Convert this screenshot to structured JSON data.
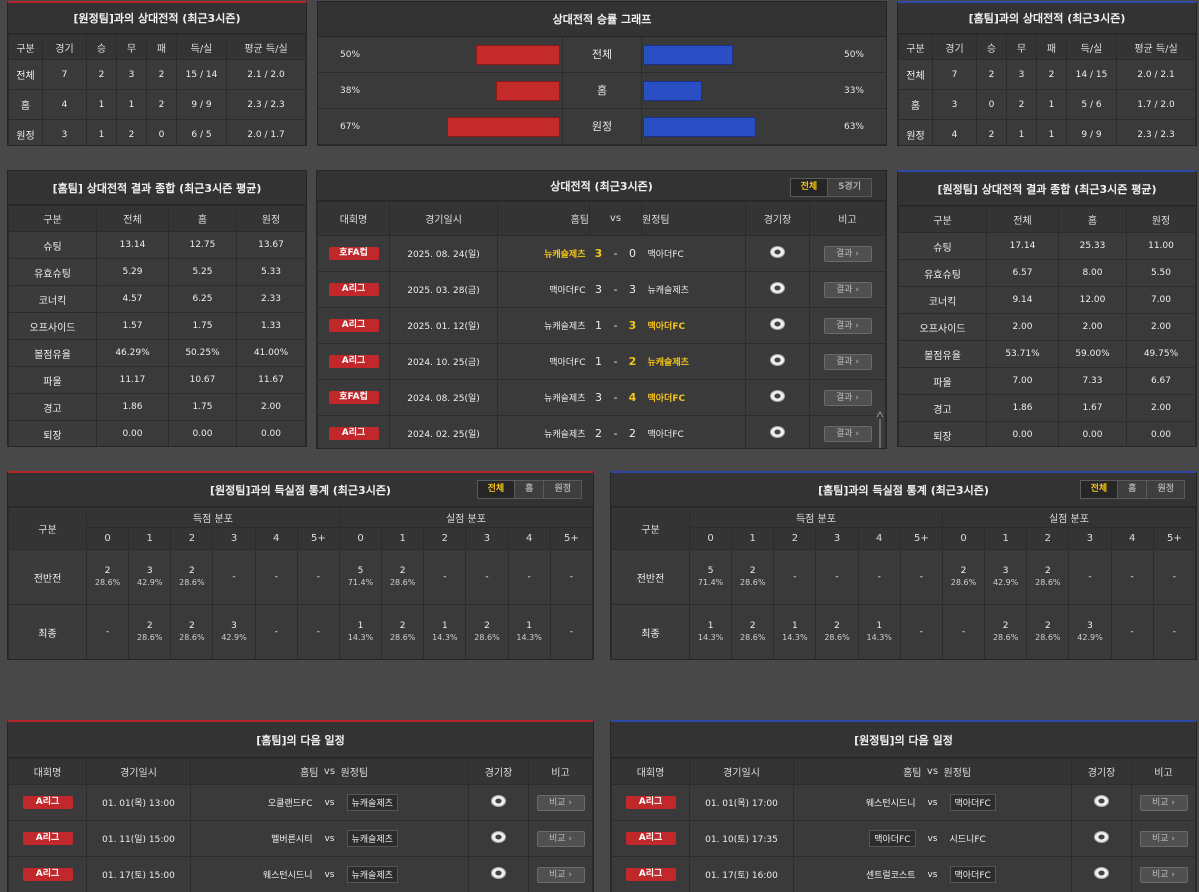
{
  "away_h2h": {
    "title": "[원정팀]과의 상대전적 (최근3시즌)",
    "headers": [
      "구분",
      "경기",
      "승",
      "무",
      "패",
      "득/실",
      "평균 득/실"
    ],
    "rows": [
      [
        "전체",
        "7",
        "2",
        "3",
        "2",
        "15 / 14",
        "2.1 / 2.0"
      ],
      [
        "홈",
        "4",
        "1",
        "1",
        "2",
        "9 / 9",
        "2.3 / 2.3"
      ],
      [
        "원정",
        "3",
        "1",
        "2",
        "0",
        "6 / 5",
        "2.0 / 1.7"
      ]
    ]
  },
  "graph": {
    "title": "상대전적 승률 그래프",
    "rows": [
      {
        "label": "전체",
        "left": "50%",
        "right": "50%",
        "lv": 50,
        "rv": 50
      },
      {
        "label": "홈",
        "left": "38%",
        "right": "33%",
        "lv": 38,
        "rv": 33
      },
      {
        "label": "원정",
        "left": "67%",
        "right": "63%",
        "lv": 67,
        "rv": 63
      }
    ],
    "colors": {
      "home": "#c42a2a",
      "away": "#2a4ec4"
    }
  },
  "home_h2h": {
    "title": "[홈팀]과의 상대전적 (최근3시즌)",
    "headers": [
      "구분",
      "경기",
      "승",
      "무",
      "패",
      "득/실",
      "평균 득/실"
    ],
    "rows": [
      [
        "전체",
        "7",
        "2",
        "3",
        "2",
        "14 / 15",
        "2.0 / 2.1"
      ],
      [
        "홈",
        "3",
        "0",
        "2",
        "1",
        "5 / 6",
        "1.7 / 2.0"
      ],
      [
        "원정",
        "4",
        "2",
        "1",
        "1",
        "9 / 9",
        "2.3 / 2.3"
      ]
    ]
  },
  "home_summary": {
    "title": "[홈팀] 상대전적 결과 종합 (최근3시즌 평균)",
    "headers": [
      "구분",
      "전체",
      "홈",
      "원정"
    ],
    "rows": [
      [
        "슈팅",
        "13.14",
        "12.75",
        "13.67"
      ],
      [
        "유효슈팅",
        "5.29",
        "5.25",
        "5.33"
      ],
      [
        "코너킥",
        "4.57",
        "6.25",
        "2.33"
      ],
      [
        "오프사이드",
        "1.57",
        "1.75",
        "1.33"
      ],
      [
        "볼점유율",
        "46.29%",
        "50.25%",
        "41.00%"
      ],
      [
        "파울",
        "11.17",
        "10.67",
        "11.67"
      ],
      [
        "경고",
        "1.86",
        "1.75",
        "2.00"
      ],
      [
        "퇴장",
        "0.00",
        "0.00",
        "0.00"
      ]
    ]
  },
  "away_summary": {
    "title": "[원정팀] 상대전적 결과 종합 (최근3시즌 평균)",
    "headers": [
      "구분",
      "전체",
      "홈",
      "원정"
    ],
    "rows": [
      [
        "슈팅",
        "17.14",
        "25.33",
        "11.00"
      ],
      [
        "유효슈팅",
        "6.57",
        "8.00",
        "5.50"
      ],
      [
        "코너킥",
        "9.14",
        "12.00",
        "7.00"
      ],
      [
        "오프사이드",
        "2.00",
        "2.00",
        "2.00"
      ],
      [
        "볼점유율",
        "53.71%",
        "59.00%",
        "49.75%"
      ],
      [
        "파울",
        "7.00",
        "7.33",
        "6.67"
      ],
      [
        "경고",
        "1.86",
        "1.67",
        "2.00"
      ],
      [
        "퇴장",
        "0.00",
        "0.00",
        "0.00"
      ]
    ]
  },
  "matches": {
    "title": "상대전적 (최근3시즌)",
    "tabs": [
      "전체",
      "5경기"
    ],
    "headers": {
      "league": "대회명",
      "date": "경기일시",
      "home": "홈팀",
      "vs": "vs",
      "away": "원정팀",
      "stadium": "경기장",
      "note": "비고"
    },
    "button": "결과",
    "rows": [
      {
        "league": "호FA컵",
        "date": "2025. 08. 24(일)",
        "home": "뉴캐슬제츠",
        "hs": "3",
        "sep": "-",
        "as": "0",
        "away": "맥아더FC",
        "win": "home"
      },
      {
        "league": "A리그",
        "date": "2025. 03. 28(금)",
        "home": "맥아더FC",
        "hs": "3",
        "sep": "-",
        "as": "3",
        "away": "뉴캐슬제츠",
        "win": "none"
      },
      {
        "league": "A리그",
        "date": "2025. 01. 12(일)",
        "home": "뉴캐슬제츠",
        "hs": "1",
        "sep": "-",
        "as": "3",
        "away": "맥아더FC",
        "win": "away"
      },
      {
        "league": "A리그",
        "date": "2024. 10. 25(금)",
        "home": "맥아더FC",
        "hs": "1",
        "sep": "-",
        "as": "2",
        "away": "뉴캐슬제츠",
        "win": "away"
      },
      {
        "league": "호FA컵",
        "date": "2024. 08. 25(일)",
        "home": "뉴캐슬제츠",
        "hs": "3",
        "sep": "-",
        "as": "4",
        "away": "맥아더FC",
        "win": "away"
      },
      {
        "league": "A리그",
        "date": "2024. 02. 25(일)",
        "home": "뉴캐슬제츠",
        "hs": "2",
        "sep": "-",
        "as": "2",
        "away": "맥아더FC",
        "win": "none"
      }
    ]
  },
  "away_goals": {
    "title": "[원정팀]과의 득실점 통계 (최근3시즌)",
    "tabs": [
      "전체",
      "홈",
      "원정"
    ],
    "row_header": "구분",
    "scored_label": "득점 분포",
    "conceded_label": "실점 분포",
    "cols": [
      "0",
      "1",
      "2",
      "3",
      "4",
      "5+"
    ],
    "rows": [
      {
        "label": "전반전",
        "scored": [
          [
            "2",
            "28.6%"
          ],
          [
            "3",
            "42.9%"
          ],
          [
            "2",
            "28.6%"
          ],
          [
            "-",
            ""
          ],
          [
            "-",
            ""
          ],
          [
            "-",
            ""
          ]
        ],
        "conceded": [
          [
            "5",
            "71.4%"
          ],
          [
            "2",
            "28.6%"
          ],
          [
            "-",
            ""
          ],
          [
            "-",
            ""
          ],
          [
            "-",
            ""
          ],
          [
            "-",
            ""
          ]
        ]
      },
      {
        "label": "최종",
        "scored": [
          [
            "-",
            ""
          ],
          [
            "2",
            "28.6%"
          ],
          [
            "2",
            "28.6%"
          ],
          [
            "3",
            "42.9%"
          ],
          [
            "-",
            ""
          ],
          [
            "-",
            ""
          ]
        ],
        "conceded": [
          [
            "1",
            "14.3%"
          ],
          [
            "2",
            "28.6%"
          ],
          [
            "1",
            "14.3%"
          ],
          [
            "2",
            "28.6%"
          ],
          [
            "1",
            "14.3%"
          ],
          [
            "-",
            ""
          ]
        ]
      }
    ]
  },
  "home_goals": {
    "title": "[홈팀]과의 득실점 통계 (최근3시즌)",
    "tabs": [
      "전체",
      "홈",
      "원정"
    ],
    "row_header": "구분",
    "scored_label": "득점 분포",
    "conceded_label": "실점 분포",
    "cols": [
      "0",
      "1",
      "2",
      "3",
      "4",
      "5+"
    ],
    "rows": [
      {
        "label": "전반전",
        "scored": [
          [
            "5",
            "71.4%"
          ],
          [
            "2",
            "28.6%"
          ],
          [
            "-",
            ""
          ],
          [
            "-",
            ""
          ],
          [
            "-",
            ""
          ],
          [
            "-",
            ""
          ]
        ],
        "conceded": [
          [
            "2",
            "28.6%"
          ],
          [
            "3",
            "42.9%"
          ],
          [
            "2",
            "28.6%"
          ],
          [
            "-",
            ""
          ],
          [
            "-",
            ""
          ],
          [
            "-",
            ""
          ]
        ]
      },
      {
        "label": "최종",
        "scored": [
          [
            "1",
            "14.3%"
          ],
          [
            "2",
            "28.6%"
          ],
          [
            "1",
            "14.3%"
          ],
          [
            "2",
            "28.6%"
          ],
          [
            "1",
            "14.3%"
          ],
          [
            "-",
            ""
          ]
        ],
        "conceded": [
          [
            "-",
            ""
          ],
          [
            "2",
            "28.6%"
          ],
          [
            "2",
            "28.6%"
          ],
          [
            "3",
            "42.9%"
          ],
          [
            "-",
            ""
          ],
          [
            "-",
            ""
          ]
        ]
      }
    ]
  },
  "home_next": {
    "title": "[홈팀]의 다음 일정",
    "headers": {
      "league": "대회명",
      "date": "경기일시",
      "home": "홈팀",
      "vs": "vs",
      "away": "원정팀",
      "stadium": "경기장",
      "note": "비고"
    },
    "button": "비교",
    "focus": "away",
    "rows": [
      {
        "league": "A리그",
        "date": "01. 01(목) 13:00",
        "home": "오클랜드FC",
        "away": "뉴캐슬제츠"
      },
      {
        "league": "A리그",
        "date": "01. 11(일) 15:00",
        "home": "멜버른시티",
        "away": "뉴캐슬제츠"
      },
      {
        "league": "A리그",
        "date": "01. 17(토) 15:00",
        "home": "웨스턴시드니",
        "away": "뉴캐슬제츠"
      }
    ]
  },
  "away_next": {
    "title": "[원정팀]의 다음 일정",
    "headers": {
      "league": "대회명",
      "date": "경기일시",
      "home": "홈팀",
      "vs": "vs",
      "away": "원정팀",
      "stadium": "경기장",
      "note": "비고"
    },
    "button": "비교",
    "rows": [
      {
        "league": "A리그",
        "date": "01. 01(목) 17:00",
        "home": "웨스턴시드니",
        "away": "맥아더FC",
        "box": "away"
      },
      {
        "league": "A리그",
        "date": "01. 10(토) 17:35",
        "home": "맥아더FC",
        "away": "시드니FC",
        "box": "home"
      },
      {
        "league": "A리그",
        "date": "01. 17(토) 16:00",
        "home": "센트럴코스트",
        "away": "맥아더FC",
        "box": "away"
      }
    ]
  }
}
